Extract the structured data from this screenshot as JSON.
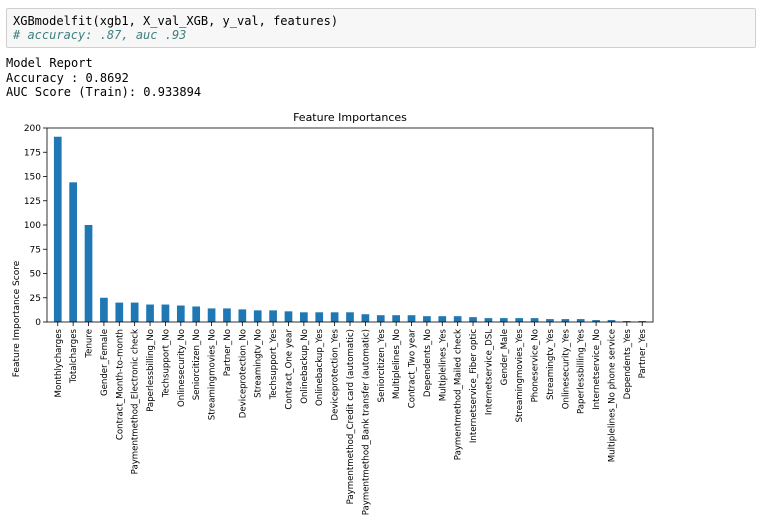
{
  "code_cell": {
    "line1": "XGBmodelfit(xgb1, X_val_XGB, y_val, features)",
    "comment": "# accuracy: .87, auc .93"
  },
  "output": {
    "heading": "Model Report",
    "accuracy": "Accuracy : 0.8692",
    "auc": "AUC Score (Train): 0.933894"
  },
  "colors": {
    "bar": "#1f77b4",
    "comment": "#408080"
  },
  "chart_data": {
    "type": "bar",
    "title": "Feature Importances",
    "xlabel": "",
    "ylabel": "Feature Importance Score",
    "ylim": [
      0,
      200
    ],
    "yticks": [
      0,
      25,
      50,
      75,
      100,
      125,
      150,
      175,
      200
    ],
    "grid": false,
    "categories": [
      "Monthlycharges",
      "Totalcharges",
      "Tenure",
      "Gender_Female",
      "Contract_Month-to-month",
      "Paymentmethod_Electronic check",
      "Paperlessbilling_No",
      "Techsupport_No",
      "Onlinesecurity_No",
      "Seniorcitizen_No",
      "Streamingmovies_No",
      "Partner_No",
      "Deviceprotection_No",
      "Streamingtv_No",
      "Techsupport_Yes",
      "Contract_One year",
      "Onlinebackup_No",
      "Onlinebackup_Yes",
      "Deviceprotection_Yes",
      "Paymentmethod_Credit card (automatic)",
      "Paymentmethod_Bank transfer (automatic)",
      "Seniorcitizen_Yes",
      "Multiplelines_No",
      "Contract_Two year",
      "Dependents_No",
      "Multiplelines_Yes",
      "Paymentmethod_Mailed check",
      "Internetservice_Fiber optic",
      "Internetservice_DSL",
      "Gender_Male",
      "Streamingmovies_Yes",
      "Phoneservice_No",
      "Streamingtv_Yes",
      "Onlinesecurity_Yes",
      "Paperlessbilling_Yes",
      "Internetservice_No",
      "Multiplelines_No phone service",
      "Dependents_Yes",
      "Partner_Yes"
    ],
    "values": [
      191,
      144,
      100,
      25,
      20,
      20,
      18,
      18,
      17,
      16,
      14,
      14,
      13,
      12,
      12,
      11,
      10,
      10,
      10,
      10,
      8,
      7,
      7,
      7,
      6,
      6,
      6,
      5,
      4,
      4,
      4,
      4,
      3,
      3,
      3,
      2,
      2,
      1,
      1
    ]
  }
}
